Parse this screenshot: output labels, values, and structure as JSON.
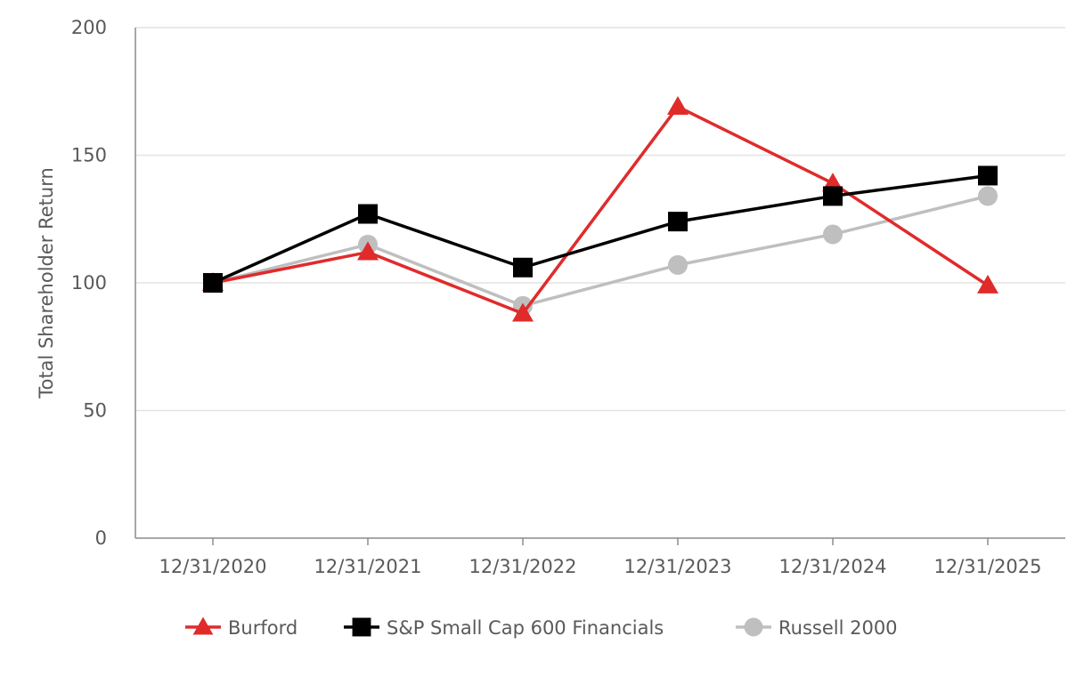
{
  "chart_data": {
    "type": "line",
    "title": "",
    "xlabel": "",
    "ylabel": "Total Shareholder Return",
    "ylim": [
      0,
      200
    ],
    "y_ticks": [
      "0",
      "50",
      "100",
      "150",
      "200"
    ],
    "y_tick_values": [
      0,
      50,
      100,
      150,
      200
    ],
    "grid": true,
    "legend_position": "bottom",
    "categories": [
      "12/31/2020",
      "12/31/2021",
      "12/31/2022",
      "12/31/2023",
      "12/31/2024",
      "12/31/2025"
    ],
    "series": [
      {
        "name": "Burford",
        "color": "#e02b2b",
        "marker": "triangle",
        "values": [
          100,
          112,
          88,
          169,
          139,
          99
        ]
      },
      {
        "name": "S&P Small Cap 600 Financials",
        "color": "#000000",
        "marker": "square",
        "values": [
          100,
          127,
          106,
          124,
          134,
          142
        ]
      },
      {
        "name": "Russell 2000",
        "color": "#bfbfbf",
        "marker": "circle",
        "values": [
          100,
          115,
          91,
          107,
          119,
          134
        ]
      }
    ]
  }
}
